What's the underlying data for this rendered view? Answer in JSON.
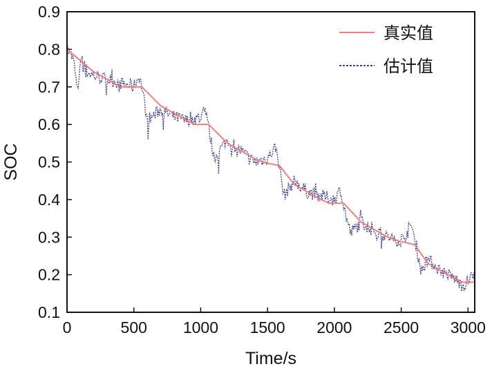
{
  "chart_data": {
    "type": "line",
    "title": "",
    "xlabel": "Time/s",
    "ylabel": "SOC",
    "xlim": [
      0,
      3050
    ],
    "ylim": [
      0.1,
      0.9
    ],
    "xticks": [
      0,
      500,
      1000,
      1500,
      2000,
      2500,
      3000
    ],
    "xtick_labels": [
      "0",
      "500",
      "1000",
      "1500",
      "2000",
      "2500",
      "3000"
    ],
    "yticks": [
      0.1,
      0.2,
      0.3,
      0.4,
      0.5,
      0.6,
      0.7,
      0.8,
      0.9
    ],
    "ytick_labels": [
      "0.1",
      "0.2",
      "0.3",
      "0.4",
      "0.5",
      "0.6",
      "0.7",
      "0.8",
      "0.9"
    ],
    "grid": false,
    "legend_position": "top-right",
    "series": [
      {
        "name": "真实值",
        "color": "#f08080",
        "style": "solid",
        "x": [
          0,
          100,
          200,
          300,
          400,
          430,
          560,
          700,
          800,
          900,
          960,
          1060,
          1200,
          1300,
          1400,
          1460,
          1590,
          1700,
          1800,
          1900,
          1960,
          2070,
          2200,
          2300,
          2400,
          2480,
          2600,
          2700,
          2800,
          2900,
          2960,
          3050
        ],
        "y": [
          0.8,
          0.77,
          0.74,
          0.72,
          0.7,
          0.7,
          0.7,
          0.65,
          0.63,
          0.61,
          0.6,
          0.6,
          0.55,
          0.53,
          0.51,
          0.5,
          0.49,
          0.44,
          0.42,
          0.4,
          0.39,
          0.39,
          0.34,
          0.32,
          0.3,
          0.29,
          0.28,
          0.23,
          0.21,
          0.19,
          0.18,
          0.18
        ]
      },
      {
        "name": "估计值",
        "color": "#3c3c8c",
        "style": "dotted",
        "x": [
          0,
          50,
          80,
          100,
          150,
          200,
          300,
          400,
          500,
          540,
          560,
          600,
          700,
          800,
          900,
          1000,
          1040,
          1060,
          1100,
          1200,
          1300,
          1400,
          1500,
          1560,
          1590,
          1620,
          1700,
          1800,
          1900,
          2000,
          2050,
          2070,
          2120,
          2200,
          2300,
          2400,
          2500,
          2580,
          2610,
          2650,
          2700,
          2800,
          2900,
          2960,
          3050
        ],
        "y": [
          0.8,
          0.77,
          0.68,
          0.78,
          0.74,
          0.73,
          0.72,
          0.71,
          0.7,
          0.73,
          0.7,
          0.61,
          0.64,
          0.62,
          0.61,
          0.62,
          0.64,
          0.59,
          0.51,
          0.56,
          0.53,
          0.5,
          0.51,
          0.54,
          0.49,
          0.41,
          0.45,
          0.42,
          0.41,
          0.4,
          0.43,
          0.38,
          0.31,
          0.34,
          0.32,
          0.3,
          0.29,
          0.33,
          0.28,
          0.21,
          0.24,
          0.21,
          0.19,
          0.17,
          0.2
        ]
      }
    ]
  }
}
